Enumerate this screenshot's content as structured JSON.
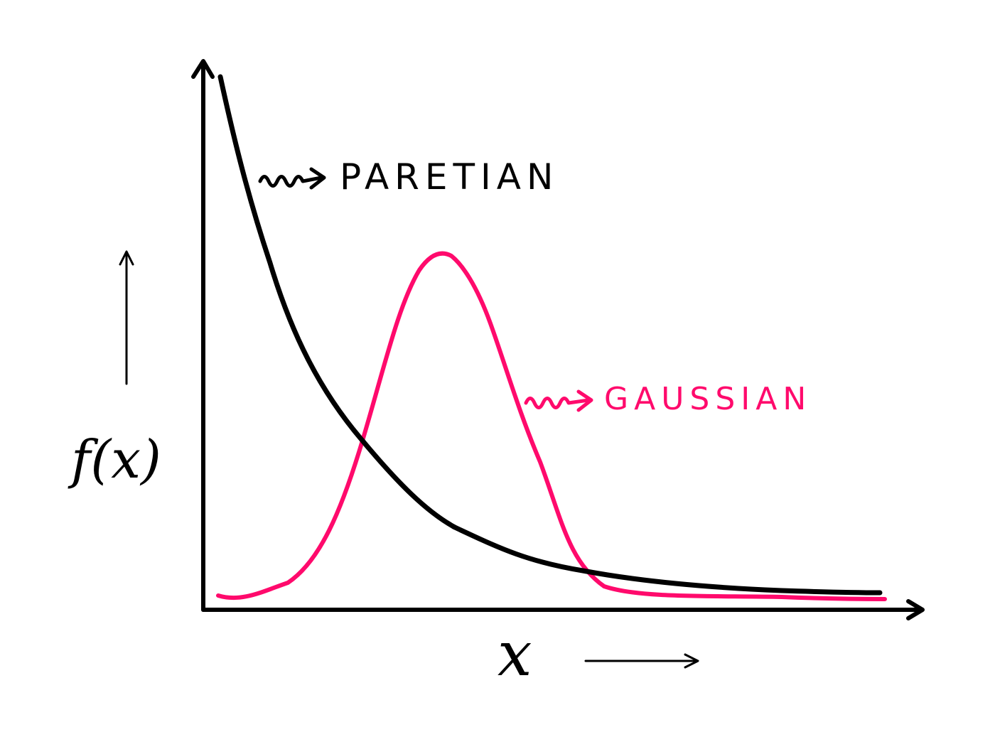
{
  "labels": {
    "pareto": "PARETIAN",
    "gauss": "GAUSSIAN",
    "y_axis": "f(x)",
    "x_axis": "x"
  },
  "colors": {
    "pareto": "#000000",
    "gauss": "#FF0A6C",
    "axis": "#000000"
  }
}
